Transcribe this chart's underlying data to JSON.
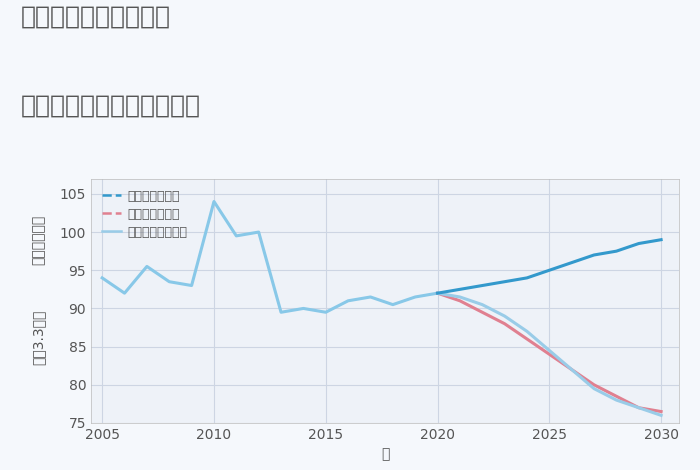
{
  "title_line1": "千葉県野田市大殿井の",
  "title_line2": "中古マンションの価格推移",
  "xlabel": "年",
  "ylabel_top": "単価（万円）",
  "ylabel_bottom": "坪（3.3㎡）",
  "xlim": [
    2004.5,
    2030.8
  ],
  "ylim": [
    75,
    107
  ],
  "yticks": [
    75,
    80,
    85,
    90,
    95,
    100,
    105
  ],
  "xticks": [
    2005,
    2010,
    2015,
    2020,
    2025,
    2030
  ],
  "background_color": "#f5f8fc",
  "plot_background": "#eef2f8",
  "grid_color": "#cdd5e3",
  "historical_x": [
    2005,
    2006,
    2007,
    2008,
    2009,
    2010,
    2011,
    2012,
    2013,
    2014,
    2015,
    2016,
    2017,
    2018,
    2019,
    2020
  ],
  "historical_y": [
    94.0,
    92.0,
    95.5,
    93.5,
    93.0,
    104.0,
    99.5,
    100.0,
    89.5,
    90.0,
    89.5,
    91.0,
    91.5,
    90.5,
    91.5,
    92.0
  ],
  "good_x": [
    2020,
    2021,
    2022,
    2023,
    2024,
    2025,
    2026,
    2027,
    2028,
    2029,
    2030
  ],
  "good_y": [
    92.0,
    92.5,
    93.0,
    93.5,
    94.0,
    95.0,
    96.0,
    97.0,
    97.5,
    98.5,
    99.0
  ],
  "bad_x": [
    2020,
    2021,
    2022,
    2023,
    2024,
    2025,
    2026,
    2027,
    2028,
    2029,
    2030
  ],
  "bad_y": [
    92.0,
    91.0,
    89.5,
    88.0,
    86.0,
    84.0,
    82.0,
    80.0,
    78.5,
    77.0,
    76.5
  ],
  "normal_x": [
    2020,
    2021,
    2022,
    2023,
    2024,
    2025,
    2026,
    2027,
    2028,
    2029,
    2030
  ],
  "normal_y": [
    92.0,
    91.5,
    90.5,
    89.0,
    87.0,
    84.5,
    82.0,
    79.5,
    78.0,
    77.0,
    76.0
  ],
  "historical_color": "#88c8e8",
  "good_color": "#3399cc",
  "bad_color": "#e08090",
  "normal_color": "#99cce8",
  "legend_good": "グッドシナリオ",
  "legend_bad": "バッドシナリオ",
  "legend_normal": "ノーマルシナリオ",
  "title_color": "#555555",
  "title_fontsize": 18,
  "axis_label_fontsize": 10,
  "tick_fontsize": 10,
  "legend_fontsize": 9
}
